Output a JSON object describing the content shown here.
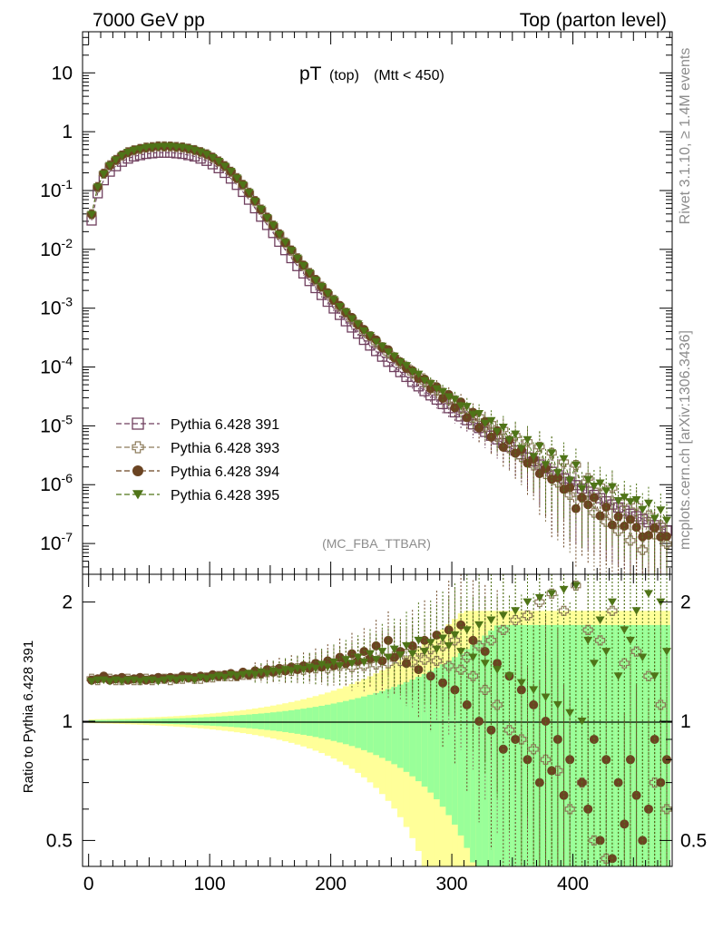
{
  "header": {
    "left": "7000 GeV pp",
    "right": "Top (parton level)"
  },
  "title": {
    "main": "pT",
    "sub1": "(top)",
    "sub2": "(Mtt < 450)"
  },
  "side": {
    "rivet": "Rivet 3.1.10, ≥ 1.4M events",
    "mcplots": "mcplots.cern.ch [arXiv:1306.3436]"
  },
  "watermark": "(MC_FBA_TTBAR)",
  "ratio_ylabel": "Ratio to Pythia 6.428 391",
  "legend": [
    {
      "label": "Pythia 6.428 391",
      "color": "#6f3f5e",
      "marker": "open-square"
    },
    {
      "label": "Pythia 6.428 393",
      "color": "#8c7b5a",
      "marker": "open-cross"
    },
    {
      "label": "Pythia 6.428 394",
      "color": "#6b4422",
      "marker": "filled-circle"
    },
    {
      "label": "Pythia 6.428 395",
      "color": "#4f7418",
      "marker": "filled-triangle-down"
    }
  ],
  "chart_data": [
    {
      "type": "scatter",
      "panel": "main",
      "x_label": "",
      "y_scale": "log",
      "xlim": [
        -5,
        482
      ],
      "ylim": [
        3e-08,
        50
      ],
      "y_tick_labels": [
        "10",
        "1",
        "10^-1",
        "10^-2",
        "10^-3",
        "10^-4",
        "10^-5",
        "10^-6",
        "10^-7"
      ],
      "x": [
        2.5,
        7.5,
        12.5,
        17.5,
        22.5,
        27.5,
        32.5,
        37.5,
        42.5,
        47.5,
        52.5,
        57.5,
        62.5,
        67.5,
        72.5,
        77.5,
        82.5,
        87.5,
        92.5,
        97.5,
        102.5,
        107.5,
        112.5,
        117.5,
        122.5,
        127.5,
        132.5,
        137.5,
        142.5,
        147.5,
        152.5,
        157.5,
        162.5,
        167.5,
        172.5,
        177.5,
        182.5,
        187.5,
        192.5,
        197.5,
        202.5,
        207.5,
        212.5,
        217.5,
        222.5,
        227.5,
        232.5,
        237.5,
        242.5,
        247.5,
        252.5,
        257.5,
        262.5,
        267.5,
        272.5,
        277.5,
        282.5,
        287.5,
        292.5,
        297.5,
        302.5,
        307.5,
        312.5,
        317.5,
        322.5,
        327.5,
        332.5,
        337.5,
        342.5,
        347.5,
        352.5,
        357.5,
        362.5,
        367.5,
        372.5,
        377.5,
        382.5,
        387.5,
        392.5,
        397.5,
        402.5,
        407.5,
        412.5,
        417.5,
        422.5,
        427.5,
        432.5,
        437.5,
        442.5,
        447.5,
        452.5,
        457.5,
        462.5,
        467.5,
        472.5,
        477.5
      ],
      "series": [
        {
          "name": "Pythia 6.428 391",
          "values": [
            0.031,
            0.09,
            0.15,
            0.21,
            0.26,
            0.31,
            0.35,
            0.38,
            0.4,
            0.42,
            0.43,
            0.44,
            0.44,
            0.44,
            0.43,
            0.42,
            0.4,
            0.38,
            0.35,
            0.32,
            0.28,
            0.24,
            0.2,
            0.16,
            0.125,
            0.095,
            0.07,
            0.05,
            0.036,
            0.026,
            0.019,
            0.0135,
            0.0097,
            0.0071,
            0.0052,
            0.0039,
            0.0029,
            0.0022,
            0.00168,
            0.00129,
            0.00099,
            0.00077,
            0.0006,
            0.00047,
            0.00037,
            0.00029,
            0.000232,
            0.000187,
            0.00015,
            0.000123,
            0.0001,
            8.2e-05,
            6.8e-05,
            5.6e-05,
            4.7e-05,
            3.9e-05,
            3.3e-05,
            2.8e-05,
            2.35e-05,
            2e-05,
            1.7e-05,
            1.45e-05,
            1.25e-05,
            1.06e-05,
            9.2e-06,
            7.9e-06,
            6.8e-06,
            5.9e-06,
            5.1e-06,
            4.4e-06,
            3.8e-06,
            3.3e-06,
            2.9e-06,
            2.5e-06,
            2.2e-06,
            1.9e-06,
            1.65e-06,
            1.45e-06,
            1.28e-06,
            1.12e-06,
            9.8e-07,
            8.6e-07,
            7.6e-07,
            6.7e-07,
            5.9e-07,
            5.2e-07,
            4.6e-07,
            4.1e-07,
            3.6e-07,
            3.2e-07,
            2.9e-07,
            2.6e-07,
            2.3e-07,
            2.05e-07,
            1.85e-07,
            1.65e-07
          ]
        },
        {
          "name": "Pythia 6.428 393",
          "ratio_to_391": [
            1.28,
            1.27,
            1.29,
            1.28,
            1.27,
            1.27,
            1.28,
            1.27,
            1.27,
            1.28,
            1.27,
            1.28,
            1.28,
            1.27,
            1.28,
            1.28,
            1.29,
            1.28,
            1.28,
            1.29,
            1.29,
            1.3,
            1.3,
            1.3,
            1.3,
            1.31,
            1.31,
            1.32,
            1.32,
            1.33,
            1.34,
            1.33,
            1.35,
            1.34,
            1.36,
            1.35,
            1.37,
            1.36,
            1.38,
            1.36,
            1.4,
            1.38,
            1.4,
            1.37,
            1.42,
            1.38,
            1.44,
            1.39,
            1.45,
            1.4,
            1.46,
            1.42,
            1.48,
            1.41,
            1.5,
            1.43,
            1.52,
            1.42,
            1.55,
            1.38,
            1.6,
            1.35,
            1.45,
            1.3,
            1.55,
            1.2,
            1.6,
            1.1,
            1.7,
            0.95,
            1.8,
            0.9,
            1.85,
            0.85,
            2.0,
            0.8,
            2.1,
            0.75,
            1.9,
            0.6,
            2.2,
            0.7,
            1.7,
            0.5,
            1.6,
            0.45,
            1.9,
            0.4,
            1.4,
            0.35,
            1.5,
            0.3,
            1.3,
            0.7,
            1.1,
            0.6
          ]
        },
        {
          "name": "Pythia 6.428 394",
          "ratio_to_391": [
            1.27,
            1.28,
            1.3,
            1.27,
            1.28,
            1.29,
            1.27,
            1.28,
            1.29,
            1.27,
            1.28,
            1.29,
            1.28,
            1.29,
            1.28,
            1.3,
            1.29,
            1.29,
            1.3,
            1.29,
            1.31,
            1.3,
            1.31,
            1.32,
            1.3,
            1.33,
            1.31,
            1.34,
            1.32,
            1.35,
            1.33,
            1.36,
            1.34,
            1.37,
            1.35,
            1.38,
            1.36,
            1.4,
            1.37,
            1.42,
            1.38,
            1.45,
            1.4,
            1.48,
            1.42,
            1.5,
            1.44,
            1.55,
            1.42,
            1.6,
            1.45,
            1.5,
            1.4,
            1.55,
            1.35,
            1.6,
            1.3,
            1.65,
            1.25,
            1.7,
            1.2,
            1.75,
            1.1,
            1.6,
            1.0,
            1.5,
            0.95,
            1.4,
            0.85,
            1.3,
            0.9,
            1.2,
            0.8,
            1.1,
            0.7,
            1.0,
            0.75,
            0.9,
            0.65,
            0.8,
            0.4,
            0.7,
            0.6,
            0.9,
            0.5,
            0.8,
            0.45,
            0.7,
            0.55,
            0.8,
            0.65,
            0.5,
            0.6,
            0.9,
            0.7,
            0.8
          ]
        },
        {
          "name": "Pythia 6.428 395",
          "ratio_to_391": [
            1.26,
            1.27,
            1.27,
            1.26,
            1.27,
            1.26,
            1.27,
            1.27,
            1.26,
            1.27,
            1.27,
            1.26,
            1.27,
            1.28,
            1.27,
            1.28,
            1.28,
            1.27,
            1.29,
            1.28,
            1.29,
            1.3,
            1.29,
            1.31,
            1.3,
            1.31,
            1.32,
            1.31,
            1.33,
            1.32,
            1.34,
            1.33,
            1.35,
            1.34,
            1.36,
            1.35,
            1.37,
            1.36,
            1.39,
            1.37,
            1.41,
            1.38,
            1.43,
            1.4,
            1.45,
            1.41,
            1.48,
            1.43,
            1.5,
            1.45,
            1.52,
            1.47,
            1.55,
            1.48,
            1.6,
            1.5,
            1.58,
            1.52,
            1.62,
            1.55,
            1.65,
            1.5,
            1.7,
            1.45,
            1.75,
            1.4,
            1.8,
            1.35,
            1.85,
            1.3,
            1.9,
            1.25,
            2.0,
            1.2,
            2.05,
            1.15,
            2.1,
            1.1,
            2.15,
            1.05,
            2.2,
            1.0,
            1.6,
            1.4,
            1.8,
            1.5,
            2.0,
            1.3,
            1.7,
            1.6,
            1.9,
            1.45,
            2.1,
            1.3,
            2.0,
            1.5
          ]
        }
      ]
    },
    {
      "type": "scatter",
      "panel": "ratio",
      "ylabel": "Ratio to Pythia 6.428 391",
      "y_scale": "log",
      "xlim": [
        -5,
        482
      ],
      "ylim": [
        0.43,
        2.35
      ],
      "x_tick_labels": [
        "0",
        "100",
        "200",
        "300",
        "400"
      ],
      "y_tick_labels": [
        "2",
        "1",
        "0.5"
      ],
      "reference_line": 1,
      "bands": [
        {
          "color": "#ffff99",
          "role": "outer uncertainty"
        },
        {
          "color": "#99ff99",
          "role": "inner uncertainty"
        }
      ]
    }
  ]
}
